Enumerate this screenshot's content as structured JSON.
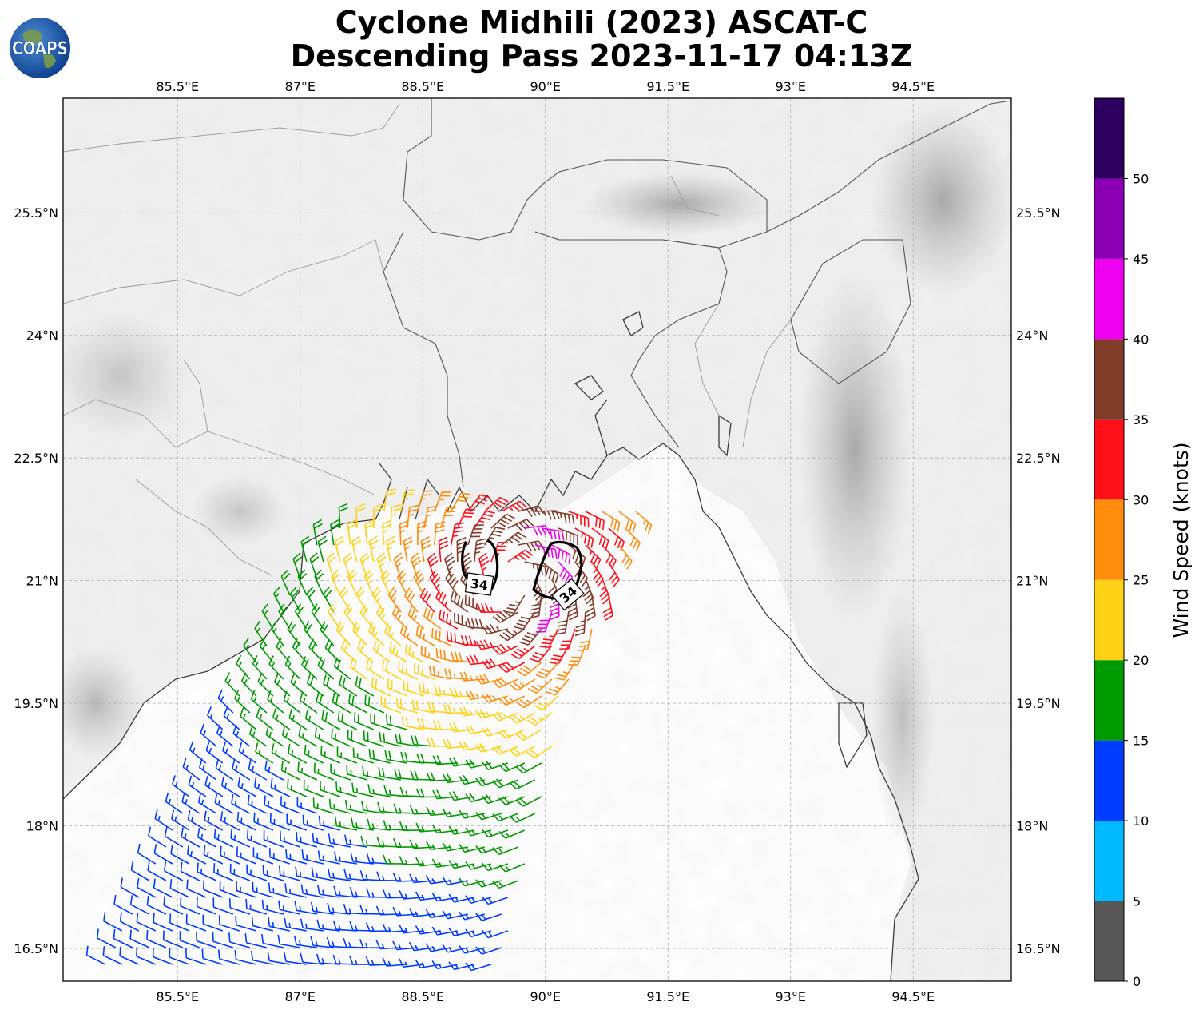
{
  "title": {
    "line1": "Cyclone Midhili (2023) ASCAT-C",
    "line2": "Descending Pass 2023-11-17 04:13Z"
  },
  "logo": {
    "text": "COAPS",
    "icon": "globe-icon"
  },
  "axes": {
    "lon_ticks": [
      "85.5°E",
      "87°E",
      "88.5°E",
      "90°E",
      "91.5°E",
      "93°E",
      "94.5°E"
    ],
    "lat_ticks": [
      "25.5°N",
      "24°N",
      "22.5°N",
      "21°N",
      "19.5°N",
      "18°N",
      "16.5°N"
    ],
    "lon_range": [
      84.1,
      95.7
    ],
    "lat_range": [
      16.1,
      26.9
    ],
    "grid": true
  },
  "colorbar": {
    "label": "Wind Speed (knots)",
    "ticks": [
      "0",
      "5",
      "10",
      "15",
      "20",
      "25",
      "30",
      "35",
      "40",
      "45",
      "50"
    ],
    "range": [
      0,
      55
    ],
    "bins": [
      {
        "from": 0,
        "to": 5,
        "color": "#575757"
      },
      {
        "from": 5,
        "to": 10,
        "color": "#00baff"
      },
      {
        "from": 10,
        "to": 15,
        "color": "#003cff"
      },
      {
        "from": 15,
        "to": 20,
        "color": "#009900"
      },
      {
        "from": 20,
        "to": 25,
        "color": "#ffd216"
      },
      {
        "from": 25,
        "to": 30,
        "color": "#ff8c0a"
      },
      {
        "from": 30,
        "to": 35,
        "color": "#ff0f18"
      },
      {
        "from": 35,
        "to": 40,
        "color": "#823c2a"
      },
      {
        "from": 40,
        "to": 45,
        "color": "#f000f0"
      },
      {
        "from": 45,
        "to": 50,
        "color": "#8c00b4"
      },
      {
        "from": 50,
        "to": 55,
        "color": "#2d005f"
      }
    ]
  },
  "contour": {
    "label": "34",
    "level_kt": 34
  },
  "storm_center": {
    "lon": 89.6,
    "lat": 21.0
  }
}
